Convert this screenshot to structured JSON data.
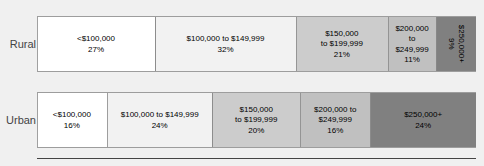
{
  "chart_data": {
    "type": "bar",
    "orientation": "horizontal",
    "stacked": true,
    "categories": [
      "Rural",
      "Urban"
    ],
    "series": [
      {
        "color": "#ffffff",
        "values": [
          27,
          16
        ],
        "value_labels": [
          "<$100,000\n27%",
          "<$100,000\n16%"
        ]
      },
      {
        "color": "#f2f2f2",
        "values": [
          32,
          24
        ],
        "value_labels": [
          "$100,000 to $149,999\n32%",
          "$100,000 to $149,999\n24%"
        ]
      },
      {
        "color": "#cccccc",
        "values": [
          21,
          20
        ],
        "value_labels": [
          "$150,000\nto $199,999\n21%",
          "$150,000\nto $199,999\n20%"
        ]
      },
      {
        "color": "#c0c0c0",
        "values": [
          11,
          16
        ],
        "value_labels": [
          "$200,000\nto\n$249,999\n11%",
          "$200,000 to\n$249,999\n16%"
        ]
      },
      {
        "color": "#808080",
        "values": [
          9,
          24
        ],
        "value_labels": [
          "$250,000+\n9%",
          "$250,000+\n24%"
        ]
      }
    ],
    "xlim": [
      0,
      100
    ],
    "xticks": [],
    "data_labels": true,
    "tick_labels": "y",
    "grid": false
  }
}
